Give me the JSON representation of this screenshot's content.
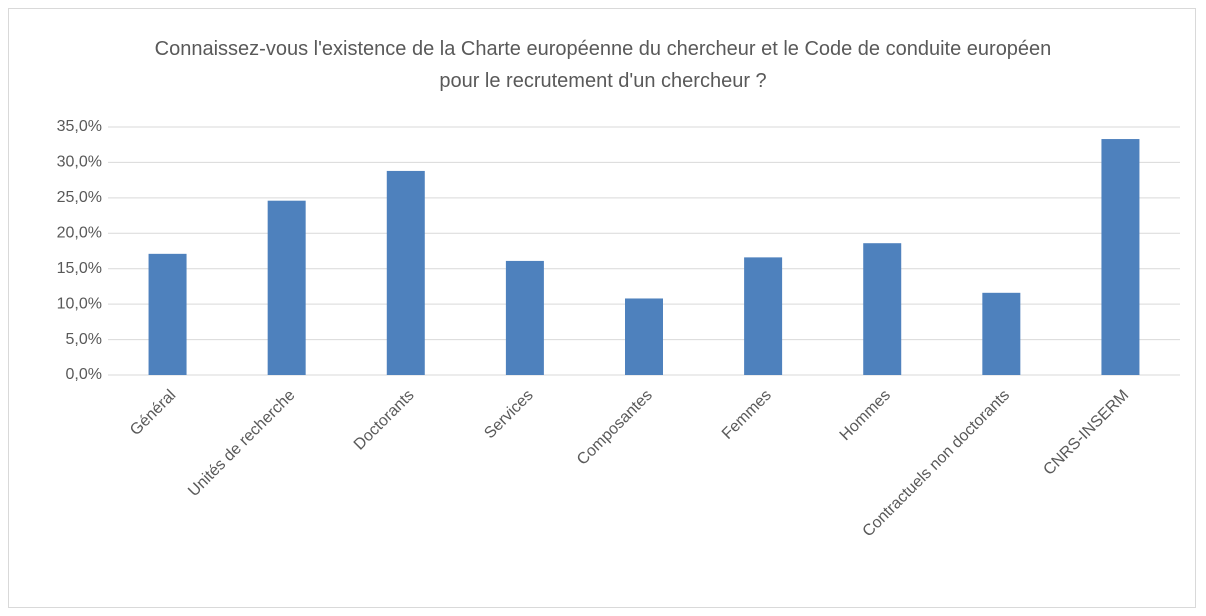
{
  "chart_data": {
    "type": "bar",
    "title": "Connaissez-vous l'existence de la Charte européenne du chercheur et le Code de conduite européen pour le recrutement d'un chercheur ?",
    "categories": [
      "Général",
      "Unités de recherche",
      "Doctorants",
      "Services",
      "Composantes",
      "Femmes",
      "Hommes",
      "Contractuels non doctorants",
      "CNRS-INSERM"
    ],
    "values": [
      17.1,
      24.6,
      28.8,
      16.1,
      10.8,
      16.6,
      18.6,
      11.6,
      33.3
    ],
    "color": "#4e81bd",
    "ylim": [
      0,
      35
    ],
    "yticks": [
      {
        "value": 0,
        "label": "0,0%"
      },
      {
        "value": 5,
        "label": "5,0%"
      },
      {
        "value": 10,
        "label": "10,0%"
      },
      {
        "value": 15,
        "label": "15,0%"
      },
      {
        "value": 20,
        "label": "20,0%"
      },
      {
        "value": 25,
        "label": "25,0%"
      },
      {
        "value": 30,
        "label": "30,0%"
      },
      {
        "value": 35,
        "label": "35,0%"
      }
    ],
    "grid": true
  }
}
